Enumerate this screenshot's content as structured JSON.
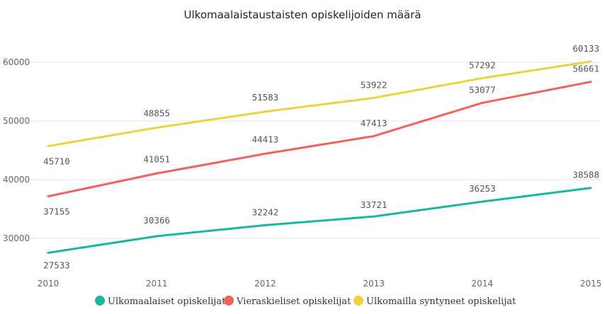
{
  "chart_data": {
    "type": "line",
    "title": "Ulkomaalaistaustaisten opiskelijoiden määrä",
    "categories": [
      "2010",
      "2011",
      "2012",
      "2013",
      "2014",
      "2015"
    ],
    "series": [
      {
        "name": "Ulkomaalaiset opiskelijat",
        "color": "#1AB5A3",
        "values": [
          27533,
          30366,
          32242,
          33721,
          36253,
          38588
        ]
      },
      {
        "name": "Vieraskieliset opiskelijat",
        "color": "#F0625A",
        "values": [
          37155,
          41051,
          44413,
          47413,
          53077,
          56661
        ]
      },
      {
        "name": "Ulkomailla syntyneet opiskelijat",
        "color": "#EFD03E",
        "values": [
          45710,
          48855,
          51583,
          53922,
          57292,
          60133
        ]
      }
    ],
    "yticks": [
      "30000",
      "40000",
      "50000",
      "60000"
    ],
    "ylim": [
      25000,
      62000
    ],
    "grid": true,
    "legend_position": "bottom",
    "xlabel": "",
    "ylabel": ""
  }
}
